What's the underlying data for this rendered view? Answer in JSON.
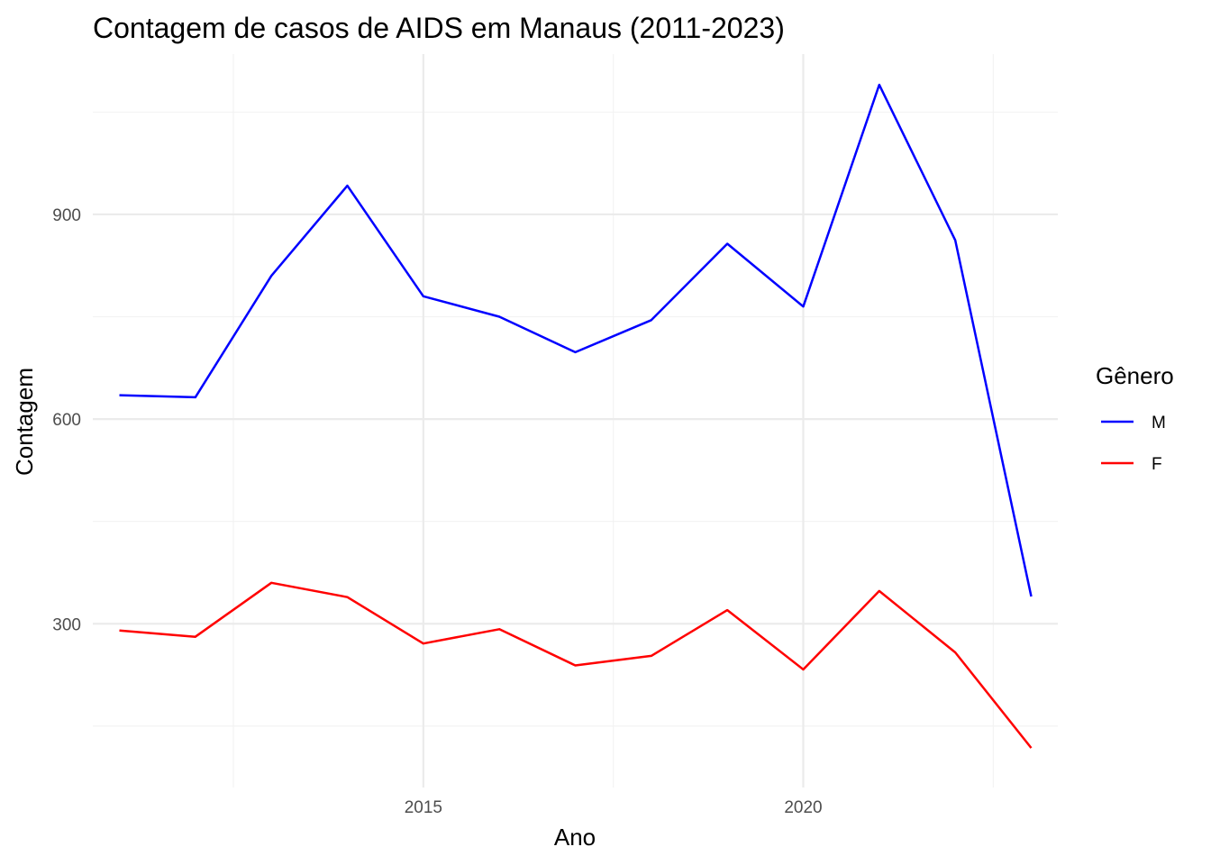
{
  "chart_data": {
    "type": "line",
    "title": "Contagem de casos de AIDS em Manaus (2011-2023)",
    "xlabel": "Ano",
    "ylabel": "Contagem",
    "x": [
      2011,
      2012,
      2013,
      2014,
      2015,
      2016,
      2017,
      2018,
      2019,
      2020,
      2021,
      2022,
      2023
    ],
    "xlim": [
      2010.65,
      2023.35
    ],
    "ylim": [
      60,
      1135
    ],
    "x_ticks": [
      2015,
      2020
    ],
    "x_tick_labels": [
      "2015",
      "2020"
    ],
    "y_ticks": [
      300,
      600,
      900
    ],
    "y_tick_labels": [
      "300",
      "600",
      "900"
    ],
    "grid": true,
    "legend": {
      "title": "Gênero",
      "position": "right"
    },
    "series": [
      {
        "name": "M",
        "color": "#0000ff",
        "values": [
          635,
          632,
          810,
          942,
          780,
          750,
          698,
          745,
          857,
          765,
          1090,
          862,
          340
        ]
      },
      {
        "name": "F",
        "color": "#ff0000",
        "values": [
          290,
          281,
          360,
          339,
          271,
          292,
          239,
          253,
          320,
          233,
          348,
          258,
          118
        ]
      }
    ]
  }
}
